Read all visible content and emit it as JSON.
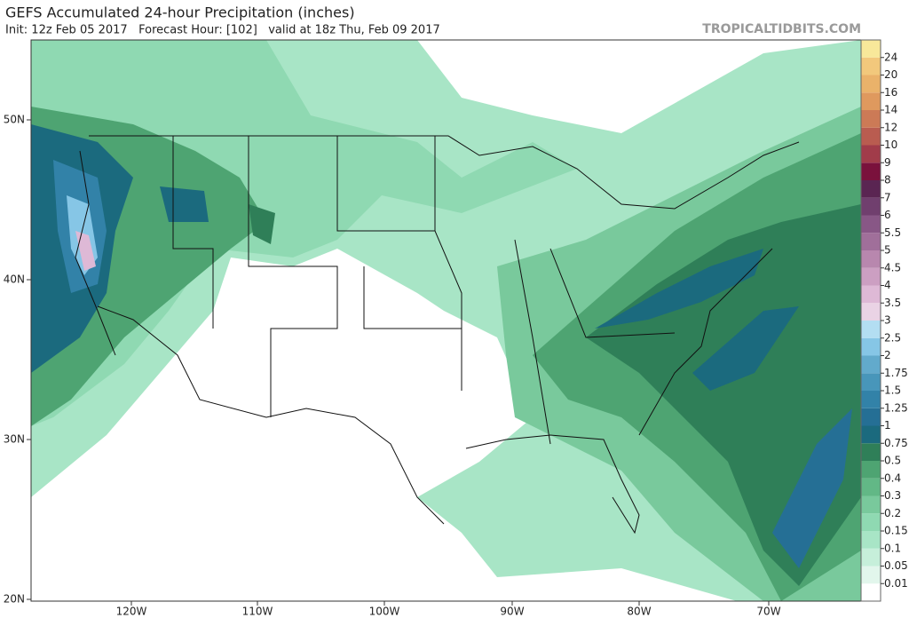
{
  "header": {
    "title": "GEFS Accumulated 24-hour Precipitation (inches)",
    "subtitle": "Init: 12z Feb 05 2017   Forecast Hour: [102]   valid at 18z Thu, Feb 09 2017",
    "watermark": "TROPICALTIDBITS.COM"
  },
  "map": {
    "lat_labels": [
      "50N",
      "40N",
      "30N",
      "20N"
    ],
    "lon_labels": [
      "120W",
      "110W",
      "100W",
      "90W",
      "80W",
      "70W"
    ]
  },
  "colorbar": {
    "levels": [
      0.01,
      0.05,
      0.1,
      0.15,
      0.2,
      0.3,
      0.4,
      0.5,
      0.75,
      1,
      1.25,
      1.5,
      1.75,
      2,
      2.5,
      3,
      3.5,
      4,
      4.5,
      5,
      5.5,
      6,
      7,
      8,
      9,
      10,
      12,
      14,
      16,
      20,
      24
    ],
    "colors": [
      "#ffffff",
      "#e2f6ec",
      "#c6efda",
      "#a8e5c6",
      "#8fd9b2",
      "#79c99c",
      "#62b886",
      "#4ea472",
      "#2f7f58",
      "#1b6a7e",
      "#256f95",
      "#3282a8",
      "#4896ba",
      "#62aacc",
      "#86c6e6",
      "#b3def2",
      "#ead3e5",
      "#deb9d6",
      "#cc9fc2",
      "#b887ae",
      "#a06f9a",
      "#885786",
      "#703f6e",
      "#5a2552",
      "#7a113c",
      "#a13c4a",
      "#b95c50",
      "#cc7a56",
      "#df995e",
      "#eab26a",
      "#f2c87c",
      "#f8e89a"
    ]
  }
}
